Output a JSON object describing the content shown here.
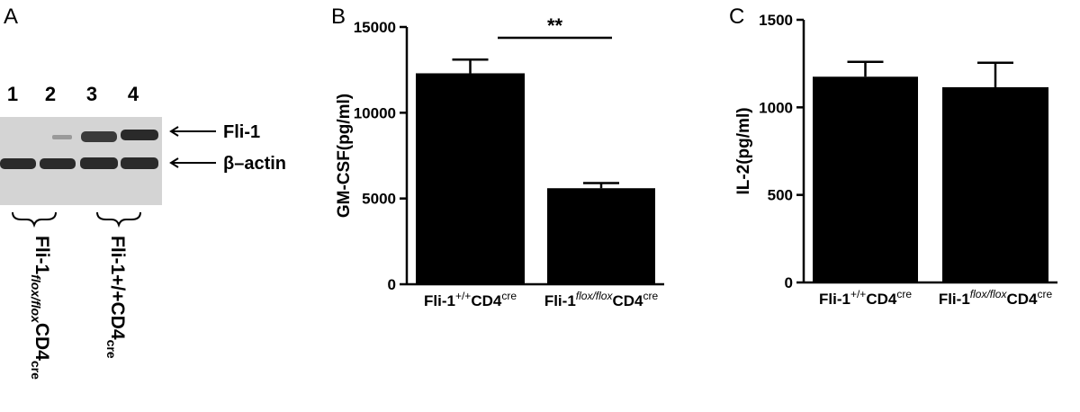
{
  "blot": {
    "label": "A",
    "lanes": [
      "1",
      "2",
      "3",
      "4"
    ],
    "bands": [
      "Fli-1",
      "β–actin"
    ],
    "groups": [
      [
        "Fli-1",
        "flox/flox",
        "CD4",
        "cre"
      ],
      [
        "Fli-1",
        "+/+",
        "CD4",
        "cre"
      ]
    ]
  },
  "chart_data": [
    {
      "type": "bar",
      "label": "B",
      "ylabel": "GM-CSF(pg/ml)",
      "color": "#000000",
      "categories": [
        [
          "Fli-1",
          "+/+",
          "CD4",
          "cre"
        ],
        [
          "Fli-1",
          "flox/flox",
          "CD4",
          "cre"
        ]
      ],
      "values": [
        12300,
        5600
      ],
      "errors": [
        800,
        300
      ],
      "ylim": [
        0,
        15000
      ],
      "yticks": [
        0,
        5000,
        10000,
        15000
      ],
      "annotation": "**"
    },
    {
      "type": "bar",
      "label": "C",
      "ylabel": "IL-2(pg/ml)",
      "color": "#000000",
      "categories": [
        [
          "Fli-1",
          "+/+",
          "CD4",
          "cre"
        ],
        [
          "Fli-1",
          "flox/flox",
          "CD4",
          "cre"
        ]
      ],
      "values": [
        1175,
        1115
      ],
      "errors": [
        85,
        140
      ],
      "ylim": [
        0,
        1500
      ],
      "yticks": [
        0,
        500,
        1000,
        1500
      ]
    }
  ]
}
